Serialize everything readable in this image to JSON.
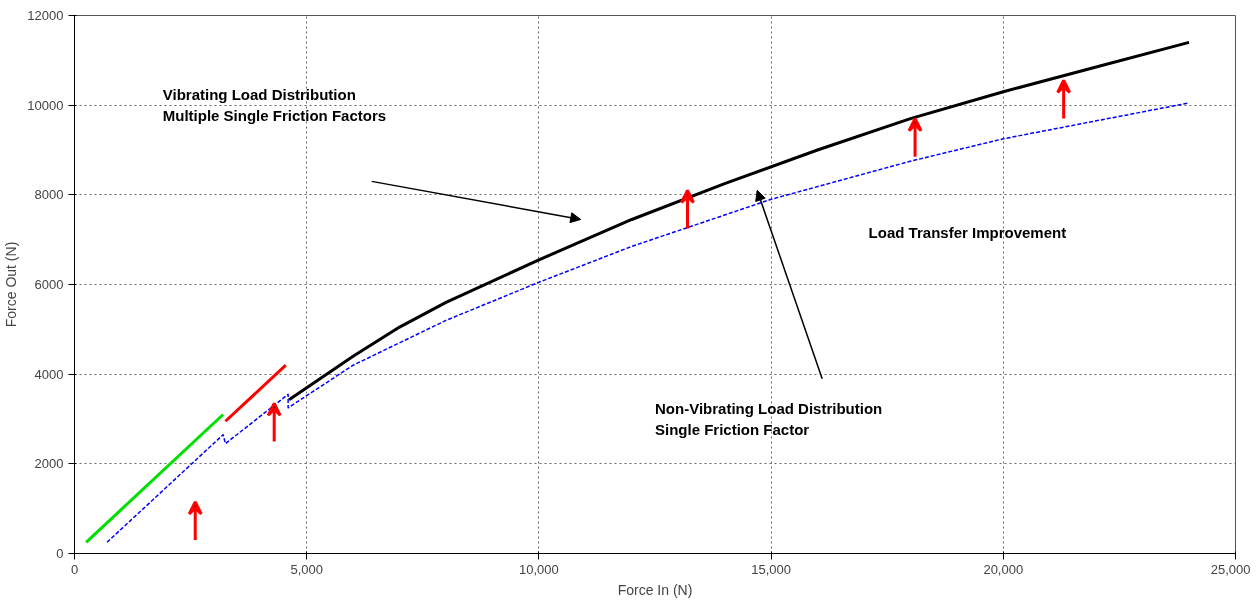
{
  "chart_data": {
    "type": "line",
    "xlabel": "Force In (N)",
    "ylabel": "Force Out (N)",
    "xlim": [
      0,
      25000
    ],
    "ylim": [
      0,
      12000
    ],
    "xticks": [
      0,
      {
        "value": 5000,
        "label": "5,000"
      },
      {
        "value": 10000,
        "label": "10,000"
      },
      {
        "value": 15000,
        "label": "15,000"
      },
      {
        "value": 20000,
        "label": "20,000"
      },
      {
        "value": 25000,
        "label": "25,000"
      }
    ],
    "yticks": [
      0,
      2000,
      4000,
      6000,
      8000,
      10000,
      12000
    ],
    "grid": true,
    "marker": "none",
    "series": [
      {
        "color": "#00e000",
        "line_style": "solid",
        "x": [
          250,
          3200
        ],
        "values": [
          250,
          3100
        ]
      },
      {
        "color": "#ff0000",
        "line_style": "solid",
        "x": [
          3250,
          4550
        ],
        "values": [
          2950,
          4200
        ]
      },
      {
        "color": "#000000",
        "line_style": "solid",
        "x": [
          4620,
          6000,
          7000,
          8000,
          10000,
          12000,
          14000,
          16000,
          18000,
          20000,
          22000,
          24000
        ],
        "values": [
          3430,
          4400,
          5050,
          5600,
          6550,
          7450,
          8250,
          9000,
          9700,
          10300,
          10850,
          11400
        ]
      },
      {
        "color": "#0000ff",
        "line_style": "dashed",
        "x": [
          700,
          3200,
          3250,
          4600,
          4600,
          6000,
          8000,
          10000,
          12000,
          15000,
          18000,
          20000,
          22000,
          24000
        ],
        "values": [
          250,
          2650,
          2450,
          3550,
          3250,
          4200,
          5200,
          6050,
          6850,
          7900,
          8750,
          9250,
          9650,
          10050
        ]
      }
    ],
    "annotations": [
      "Vibrating Load Distribution\n Multiple Single Friction Factors",
      "Load Transfer Improvement",
      "Non-Vibrating Load Distribution\n Single Friction Factor"
    ]
  }
}
